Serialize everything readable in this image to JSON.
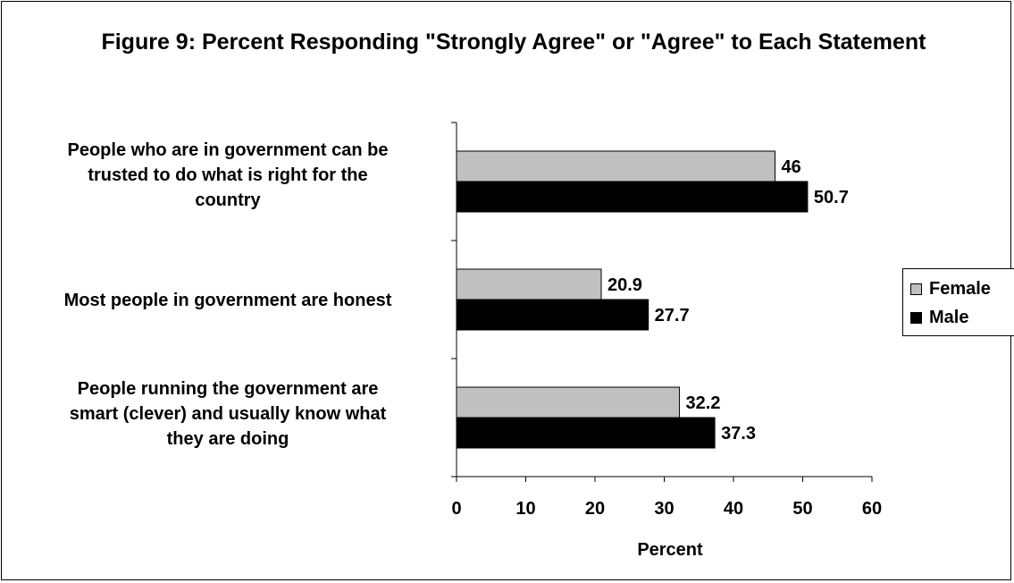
{
  "chart_data": {
    "type": "bar",
    "orientation": "horizontal",
    "title": "Figure 9: Percent Responding \"Strongly Agree\" or \"Agree\" to Each Statement",
    "categories": [
      "People who are in government can be trusted to do what is right for the country",
      "Most people in government are honest",
      "People running the government are smart (clever) and usually know what they are doing"
    ],
    "category_lines": [
      [
        "People who are in government can be",
        "trusted to do what is right for the",
        "country"
      ],
      [
        "Most people in government are honest"
      ],
      [
        "People running the government are",
        "smart (clever) and usually know what",
        "they are doing"
      ]
    ],
    "series": [
      {
        "name": "Female",
        "values": [
          46,
          20.9,
          32.2
        ],
        "value_labels": [
          "46",
          "20.9",
          "32.2"
        ],
        "color": "#c0c0c0"
      },
      {
        "name": "Male",
        "values": [
          50.7,
          27.7,
          37.3
        ],
        "value_labels": [
          "50.7",
          "27.7",
          "37.3"
        ],
        "color": "#000000"
      }
    ],
    "xlabel": "Percent",
    "ylabel": "",
    "xlim": [
      0,
      60
    ],
    "x_ticks": [
      0,
      10,
      20,
      30,
      40,
      50,
      60
    ],
    "grid": false,
    "legend": "right"
  }
}
